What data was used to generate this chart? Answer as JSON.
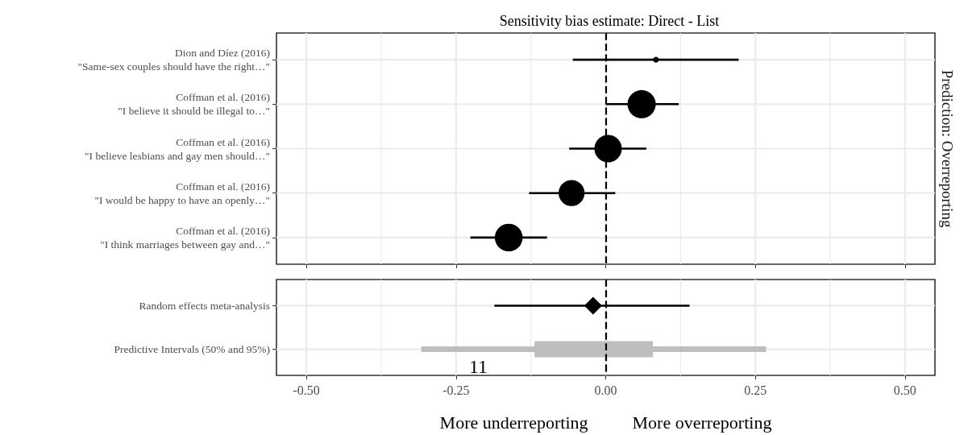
{
  "chart_data": [
    {
      "type": "bubble",
      "title": "Sensitivity bias estimate: Direct - List",
      "orientation": "horizontal",
      "categories": [
        "Dion and Díez (2016)\n\"Same-sex couples should have the right…\"",
        "Coffman et al. (2016)\n\"I believe it should be illegal to…\"",
        "Coffman et al. (2016)\n\"I believe lesbians and gay men should…\"",
        "Coffman et al. (2016)\n\"I would be happy to have an openly…\"",
        "Coffman et al. (2016)\n\"I think marriages between gay and…\""
      ],
      "values": [
        0.084,
        0.06,
        0.004,
        -0.057,
        -0.162
      ],
      "errors": [
        [
          -0.055,
          0.222
        ],
        [
          0,
          0.122
        ],
        [
          -0.061,
          0.068
        ],
        [
          -0.128,
          0.016
        ],
        [
          -0.226,
          -0.098
        ]
      ],
      "sizes": [
        0.043,
        1,
        0.94,
        0.85,
        0.97
      ],
      "color": "#000000",
      "xlim": [
        -0.55,
        0.55
      ],
      "xticks": [
        -0.5,
        -0.25,
        0,
        0.25,
        0.5
      ],
      "tick_labels": "y",
      "grid": true,
      "ref_lines": [
        {
          "axis": "x",
          "value": 0,
          "line_style": "dashed",
          "color": "#000000"
        }
      ],
      "annotations": [
        "Prediction: Overreporting"
      ]
    },
    {
      "type": "scatter",
      "orientation": "horizontal",
      "categories": [
        "Random effects meta-analysis",
        "Predictive Intervals (50% and 95%)"
      ],
      "series": [
        {
          "marker": "diamond",
          "color": "#000000",
          "values": [
            -0.021,
            null
          ],
          "errors": [
            [
              -0.186,
              0.14
            ],
            null
          ]
        },
        {
          "type": "bar",
          "color": "#bebebe",
          "base": [
            null,
            -0.308
          ],
          "values": [
            null,
            0.576
          ]
        },
        {
          "type": "bar",
          "color": "#bebebe",
          "base": [
            null,
            -0.119
          ],
          "values": [
            null,
            0.198
          ]
        }
      ],
      "xlim": [
        -0.55,
        0.55
      ],
      "xticks": [
        {
          "value": -0.5,
          "label": "-0.50"
        },
        {
          "value": -0.25,
          "label": "-0.25"
        },
        {
          "value": 0,
          "label": "0.00"
        },
        {
          "value": 0.25,
          "label": "0.25"
        },
        {
          "value": 0.5,
          "label": "0.50"
        }
      ],
      "grid": true,
      "xlabel": "More underreporting          More overreporting",
      "ref_lines": [
        {
          "axis": "x",
          "value": 0,
          "line_style": "dashed",
          "color": "#000000"
        }
      ],
      "annotations": [
        "11"
      ]
    }
  ]
}
